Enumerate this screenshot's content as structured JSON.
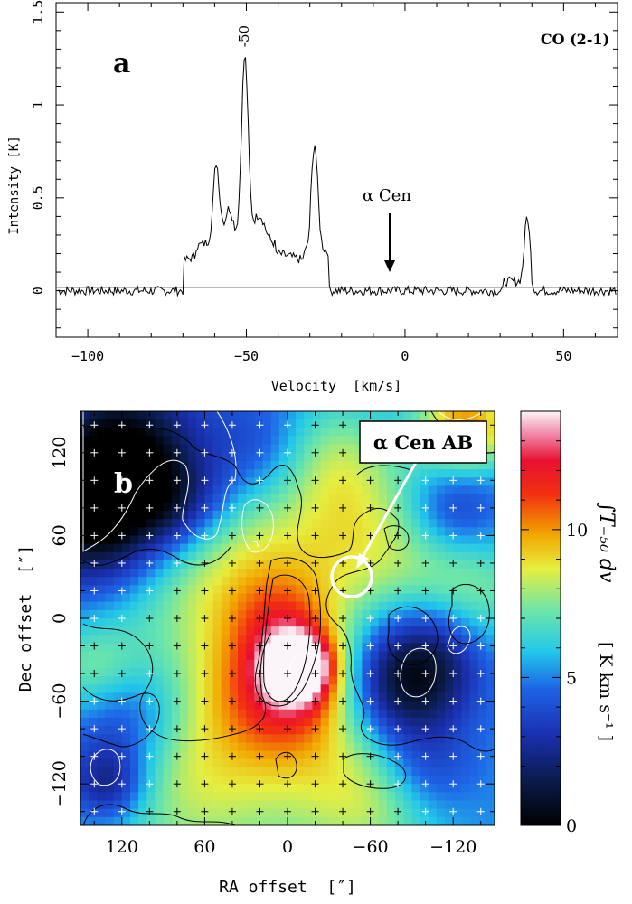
{
  "chart_data": [
    {
      "type": "line",
      "panel_label": "a",
      "title": "CO (2-1)",
      "xlabel": "Velocity  [km/s]",
      "ylabel": "Intensity [K]",
      "xlim": [
        -110,
        67
      ],
      "ylim": [
        -0.25,
        1.55
      ],
      "xticks": [
        -100,
        -50,
        0,
        50
      ],
      "yticks": [
        0,
        0.5,
        1,
        1.5
      ],
      "x_tick_labels": [
        "−100",
        "−50",
        "0",
        "50"
      ],
      "y_tick_labels": [
        "0",
        "0.5",
        "1",
        "1.5"
      ],
      "grid": false,
      "baseline": 0,
      "peaks": [
        {
          "x": -59.5,
          "y": 0.63
        },
        {
          "x": -50.5,
          "y": 1.26
        },
        {
          "x": -28.5,
          "y": 0.88
        },
        {
          "x": 38.5,
          "y": 0.36
        }
      ],
      "peak_annotation": {
        "x": -50.5,
        "text": "-50"
      },
      "arrow_annotation": {
        "text": "α Cen",
        "x": -4.5,
        "y": 0.05
      }
    },
    {
      "type": "heatmap",
      "panel_label": "b",
      "xlabel": "RA offset  [″]",
      "ylabel": "Dec offset  [″]",
      "xlim": [
        150,
        -150
      ],
      "ylim": [
        -150,
        150
      ],
      "xticks": [
        120,
        60,
        0,
        -60,
        -120
      ],
      "yticks": [
        -120,
        -60,
        0,
        60,
        120
      ],
      "x_tick_labels": [
        "120",
        "60",
        "0",
        "−60",
        "−120"
      ],
      "y_tick_labels": [
        "−120",
        "−60",
        "0",
        "60",
        "120"
      ],
      "grid_crosses": true,
      "colorbar": {
        "min": 0,
        "max": 14,
        "ticks": [
          0,
          5,
          10
        ],
        "tick_labels": [
          "0",
          "5",
          "10"
        ],
        "label": "∫T₋₅₀ dv",
        "unit_label": "[ K km s⁻¹ ]"
      },
      "annotation": {
        "text": "α Cen AB",
        "ra": -50,
        "dec": 14
      },
      "peak_emission": {
        "ra": -8,
        "dec": -35,
        "value": 13.5
      }
    }
  ]
}
